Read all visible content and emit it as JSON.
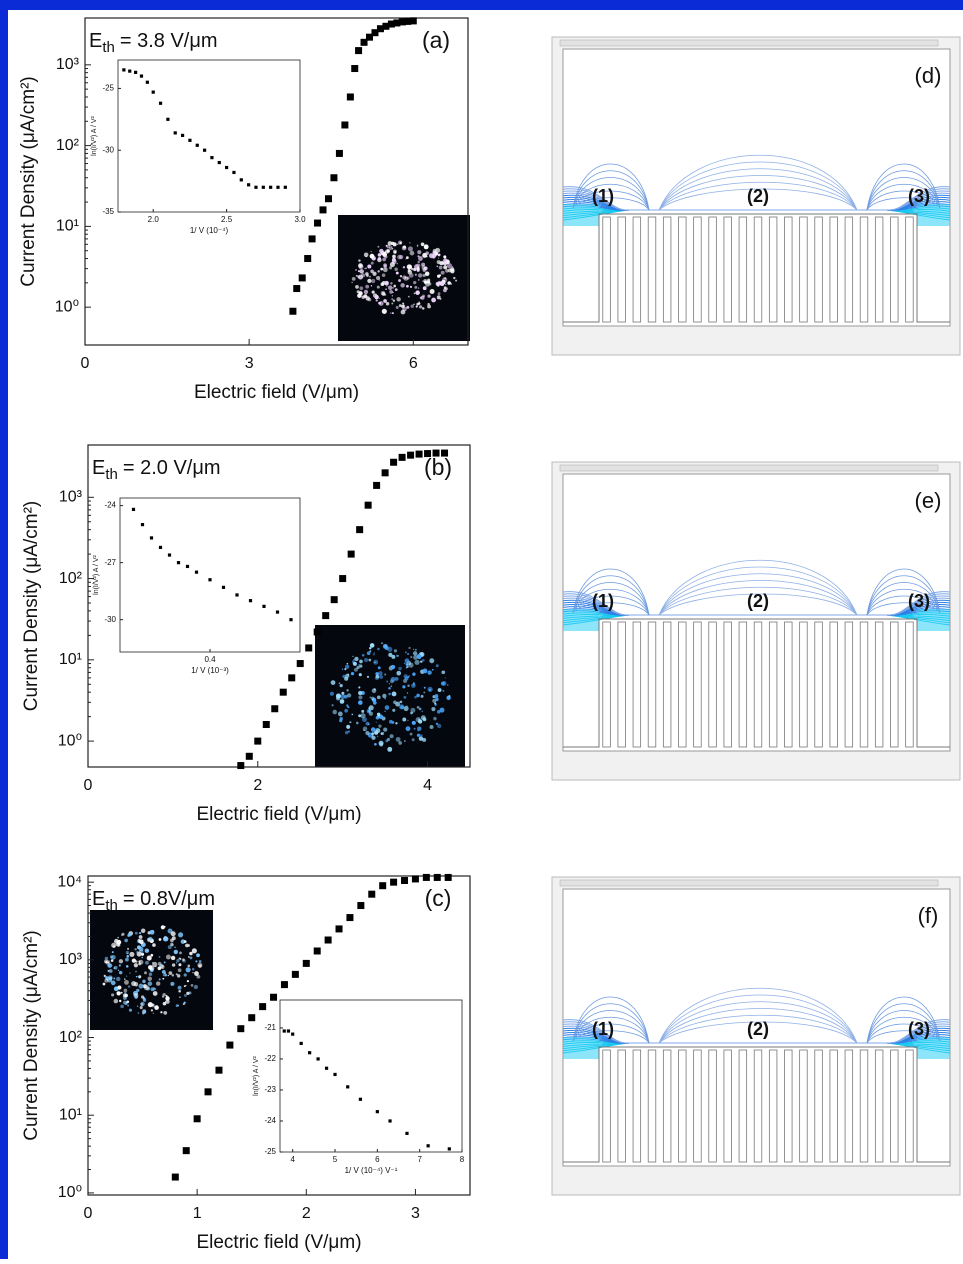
{
  "chart_data": [
    {
      "type": "scatter",
      "log_y": true,
      "color": "#000000",
      "panel_label": "(a)",
      "annotation": {
        "symbol": "E",
        "subscript": "th",
        "text": "= 3.8 V/μm"
      },
      "x_label": "Electric field (V/μm)",
      "y_label": "Current Density (μA/cm²)",
      "x": [
        3.8,
        3.87,
        3.97,
        4.07,
        4.15,
        4.25,
        4.35,
        4.45,
        4.55,
        4.65,
        4.75,
        4.85,
        4.93,
        5.0,
        5.1,
        5.2,
        5.3,
        5.4,
        5.5,
        5.6,
        5.7,
        5.8,
        5.9,
        6.0
      ],
      "values": [
        0.89,
        1.7,
        2.3,
        4,
        7,
        11,
        16,
        22,
        40,
        80,
        180,
        400,
        900,
        1500,
        1900,
        2200,
        2500,
        2800,
        3000,
        3200,
        3300,
        3400,
        3450,
        3500
      ],
      "xlim": [
        0,
        7
      ],
      "xticks": [
        0,
        3,
        6
      ],
      "ylim": [
        0.34,
        3800
      ],
      "yticks": [
        {
          "value": 1,
          "label": "10⁰"
        },
        {
          "value": 10,
          "label": "10¹"
        },
        {
          "value": 100,
          "label": "10²"
        },
        {
          "value": 1000,
          "label": "10³"
        }
      ]
    },
    {
      "type": "scatter",
      "log_y": true,
      "color": "#000000",
      "panel_label": "(b)",
      "annotation": {
        "symbol": "E",
        "subscript": "th",
        "text": "= 2.0 V/μm"
      },
      "x_label": "Electric field (V/μm)",
      "y_label": "Current Density (μA/cm²)",
      "x": [
        1.8,
        1.9,
        2.0,
        2.1,
        2.2,
        2.3,
        2.4,
        2.5,
        2.6,
        2.7,
        2.8,
        2.9,
        3.0,
        3.1,
        3.2,
        3.3,
        3.4,
        3.5,
        3.6,
        3.7,
        3.8,
        3.9,
        4.0,
        4.1,
        4.2
      ],
      "values": [
        0.5,
        0.65,
        1.0,
        1.6,
        2.5,
        4,
        6,
        9,
        14,
        22,
        35,
        55,
        100,
        200,
        400,
        800,
        1400,
        2000,
        2700,
        3100,
        3300,
        3400,
        3450,
        3500,
        3500
      ],
      "xlim": [
        0,
        4.5
      ],
      "xticks": [
        0,
        2,
        4
      ],
      "ylim": [
        0.48,
        4400
      ],
      "yticks": [
        {
          "value": 1,
          "label": "10⁰"
        },
        {
          "value": 10,
          "label": "10¹"
        },
        {
          "value": 100,
          "label": "10²"
        },
        {
          "value": 1000,
          "label": "10³"
        }
      ]
    },
    {
      "type": "scatter",
      "log_y": true,
      "color": "#000000",
      "panel_label": "(c)",
      "annotation": {
        "symbol": "E",
        "subscript": "th",
        "text": "= 0.8V/μm"
      },
      "x_label": "Electric field (V/μm)",
      "y_label": "Current Density (μA/cm²)",
      "x": [
        0.8,
        0.9,
        1.0,
        1.1,
        1.2,
        1.3,
        1.4,
        1.5,
        1.6,
        1.7,
        1.8,
        1.9,
        2.0,
        2.1,
        2.2,
        2.3,
        2.4,
        2.5,
        2.6,
        2.7,
        2.8,
        2.9,
        3.0,
        3.1,
        3.2,
        3.3
      ],
      "values": [
        1.6,
        3.5,
        9,
        20,
        38,
        80,
        130,
        180,
        250,
        330,
        480,
        650,
        900,
        1300,
        1800,
        2500,
        3500,
        5000,
        7000,
        9000,
        10000,
        10500,
        11000,
        11500,
        11500,
        11500
      ],
      "xlim": [
        0,
        3.5
      ],
      "xticks": [
        0,
        1,
        2,
        3
      ],
      "ylim": [
        0.94,
        12000
      ],
      "yticks": [
        {
          "value": 1,
          "label": "10⁰"
        },
        {
          "value": 10,
          "label": "10¹"
        },
        {
          "value": 100,
          "label": "10²"
        },
        {
          "value": 1000,
          "label": "10³"
        },
        {
          "value": 10000,
          "label": "10⁴"
        }
      ]
    },
    {
      "type": "scatter",
      "log_y": false,
      "color": "#000000",
      "x_label": "1/ V (10⁻⁴)",
      "y_label": "ln(I/V²) A / V²",
      "x": [
        1.8,
        1.84,
        1.88,
        1.92,
        1.96,
        2.0,
        2.05,
        2.1,
        2.15,
        2.2,
        2.25,
        2.3,
        2.35,
        2.4,
        2.45,
        2.5,
        2.55,
        2.6,
        2.65,
        2.7,
        2.75,
        2.8,
        2.85,
        2.9
      ],
      "values": [
        -23.5,
        -23.6,
        -23.7,
        -24.0,
        -24.5,
        -25.3,
        -26.2,
        -27.5,
        -28.6,
        -28.8,
        -29.2,
        -29.6,
        -30.0,
        -30.6,
        -31.0,
        -31.4,
        -31.8,
        -32.4,
        -32.8,
        -33.0,
        -33.0,
        -33.0,
        -33.0,
        -33.0
      ],
      "xlim": [
        1.76,
        3.0
      ],
      "xticks": [
        {
          "value": 2,
          "label": "2.0"
        },
        2.5,
        {
          "value": 3,
          "label": "3.0"
        }
      ],
      "ylim": [
        -35,
        -22.7
      ],
      "yticks": [
        -35,
        -30,
        -25
      ]
    },
    {
      "type": "scatter",
      "log_y": false,
      "color": "#000000",
      "x_label": "1/ V (10⁻³)",
      "y_label": "ln(I/V²) A / V²",
      "x": [
        0.23,
        0.25,
        0.27,
        0.29,
        0.31,
        0.33,
        0.35,
        0.37,
        0.4,
        0.43,
        0.46,
        0.49,
        0.52,
        0.55,
        0.58
      ],
      "values": [
        -24.2,
        -25.0,
        -25.7,
        -26.2,
        -26.6,
        -27.0,
        -27.2,
        -27.5,
        -27.9,
        -28.3,
        -28.7,
        -29.0,
        -29.3,
        -29.6,
        -30.0
      ],
      "xlim": [
        0.2,
        0.6
      ],
      "xticks": [
        0.4
      ],
      "ylim": [
        -31.7,
        -23.6
      ],
      "yticks": [
        -30,
        -27,
        -24
      ]
    },
    {
      "type": "scatter",
      "log_y": false,
      "color": "#000000",
      "x_label": "1/ V (10⁻⁴) V⁻¹",
      "y_label": "ln(I/V²) A / V²",
      "x": [
        3.8,
        3.9,
        4.0,
        4.2,
        4.4,
        4.6,
        4.8,
        5.0,
        5.3,
        5.6,
        6.0,
        6.3,
        6.7,
        7.2,
        7.7
      ],
      "values": [
        -21.1,
        -21.1,
        -21.2,
        -21.5,
        -21.8,
        -22.0,
        -22.3,
        -22.5,
        -22.9,
        -23.3,
        -23.7,
        -24.0,
        -24.4,
        -24.8,
        -24.9
      ],
      "xlim": [
        3.7,
        8.0
      ],
      "xticks": [
        4,
        5,
        6,
        7,
        8
      ],
      "ylim": [
        -25,
        -20.1
      ],
      "yticks": [
        -25,
        -24,
        -23,
        -22,
        -21
      ]
    }
  ],
  "simulations": [
    {
      "panel_label": "(d)",
      "regions": [
        "(1)",
        "(2)",
        "(3)"
      ]
    },
    {
      "panel_label": "(e)",
      "regions": [
        "(1)",
        "(2)",
        "(3)"
      ]
    },
    {
      "panel_label": "(f)",
      "regions": [
        "(1)",
        "(2)",
        "(3)"
      ]
    }
  ]
}
